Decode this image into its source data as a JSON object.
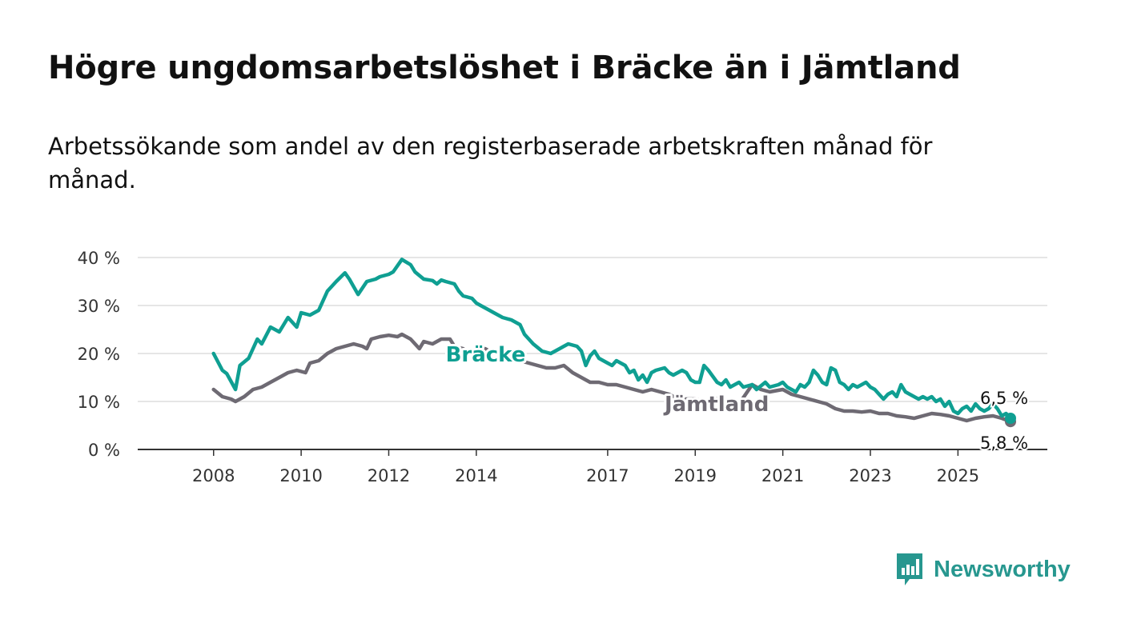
{
  "title": "Högre ungdomsarbetslöshet i Bräcke än i Jämtland",
  "subtitle": "Arbetssökande som andel av den registerbaserade arbetskraften månad för månad.",
  "brand": {
    "name": "Newsworthy",
    "icon": "newsworthy-bar-chart-icon",
    "color": "#27978f"
  },
  "chart_data": {
    "type": "line",
    "title": "",
    "xlabel": "",
    "ylabel": "",
    "ylim": [
      0,
      40
    ],
    "yticks": [
      0,
      10,
      20,
      30,
      40
    ],
    "ytick_labels": [
      "0 %",
      "10 %",
      "20 %",
      "30 %",
      "40 %"
    ],
    "xticks": [
      2008,
      2010,
      2012,
      2014,
      2017,
      2019,
      2021,
      2023,
      2025
    ],
    "xtick_labels": [
      "2008",
      "2010",
      "2012",
      "2014",
      "2017",
      "2019",
      "2021",
      "2023",
      "2025"
    ],
    "xlim": [
      2007.2,
      2026.2
    ],
    "grid": true,
    "legend": "inline labels",
    "series": [
      {
        "name": "Bräcke",
        "color": "#0f9f92",
        "label_at": [
          2013.3,
          19.8
        ],
        "end_label": "6,5 %",
        "points": [
          [
            2008.0,
            20.0
          ],
          [
            2008.2,
            16.5
          ],
          [
            2008.3,
            15.8
          ],
          [
            2008.5,
            12.5
          ],
          [
            2008.6,
            17.5
          ],
          [
            2008.8,
            19.0
          ],
          [
            2009.0,
            23.0
          ],
          [
            2009.1,
            22.0
          ],
          [
            2009.3,
            25.5
          ],
          [
            2009.5,
            24.5
          ],
          [
            2009.7,
            27.5
          ],
          [
            2009.9,
            25.5
          ],
          [
            2010.0,
            28.5
          ],
          [
            2010.2,
            28.0
          ],
          [
            2010.4,
            29.0
          ],
          [
            2010.6,
            33.0
          ],
          [
            2010.8,
            35.0
          ],
          [
            2011.0,
            36.8
          ],
          [
            2011.1,
            35.5
          ],
          [
            2011.3,
            32.3
          ],
          [
            2011.5,
            35.0
          ],
          [
            2011.7,
            35.5
          ],
          [
            2011.8,
            36.0
          ],
          [
            2012.0,
            36.5
          ],
          [
            2012.1,
            37.0
          ],
          [
            2012.3,
            39.6
          ],
          [
            2012.5,
            38.5
          ],
          [
            2012.6,
            37.0
          ],
          [
            2012.8,
            35.5
          ],
          [
            2013.0,
            35.2
          ],
          [
            2013.1,
            34.5
          ],
          [
            2013.2,
            35.3
          ],
          [
            2013.3,
            35.0
          ],
          [
            2013.5,
            34.5
          ],
          [
            2013.6,
            33.0
          ],
          [
            2013.7,
            32.0
          ],
          [
            2013.9,
            31.5
          ],
          [
            2014.0,
            30.5
          ],
          [
            2014.1,
            30.0
          ],
          [
            2014.3,
            29.0
          ],
          [
            2014.4,
            28.5
          ],
          [
            2014.6,
            27.5
          ],
          [
            2014.8,
            27.0
          ],
          [
            2015.0,
            26.0
          ],
          [
            2015.1,
            24.0
          ],
          [
            2015.3,
            22.0
          ],
          [
            2015.5,
            20.5
          ],
          [
            2015.7,
            20.0
          ],
          [
            2015.9,
            21.0
          ],
          [
            2016.0,
            21.5
          ],
          [
            2016.1,
            22.0
          ],
          [
            2016.3,
            21.5
          ],
          [
            2016.4,
            20.5
          ],
          [
            2016.5,
            17.5
          ],
          [
            2016.6,
            19.5
          ],
          [
            2016.7,
            20.5
          ],
          [
            2016.8,
            19.0
          ],
          [
            2017.0,
            18.0
          ],
          [
            2017.1,
            17.5
          ],
          [
            2017.2,
            18.5
          ],
          [
            2017.4,
            17.5
          ],
          [
            2017.5,
            16.0
          ],
          [
            2017.6,
            16.5
          ],
          [
            2017.7,
            14.5
          ],
          [
            2017.8,
            15.5
          ],
          [
            2017.9,
            14.0
          ],
          [
            2018.0,
            16.0
          ],
          [
            2018.1,
            16.5
          ],
          [
            2018.3,
            17.0
          ],
          [
            2018.4,
            16.0
          ],
          [
            2018.5,
            15.5
          ],
          [
            2018.7,
            16.5
          ],
          [
            2018.8,
            16.0
          ],
          [
            2018.9,
            14.5
          ],
          [
            2019.0,
            14.0
          ],
          [
            2019.1,
            14.0
          ],
          [
            2019.2,
            17.5
          ],
          [
            2019.3,
            16.5
          ],
          [
            2019.5,
            14.0
          ],
          [
            2019.6,
            13.5
          ],
          [
            2019.7,
            14.5
          ],
          [
            2019.8,
            13.0
          ],
          [
            2019.9,
            13.5
          ],
          [
            2020.0,
            14.0
          ],
          [
            2020.1,
            13.0
          ],
          [
            2020.3,
            13.5
          ],
          [
            2020.4,
            12.5
          ],
          [
            2020.6,
            14.0
          ],
          [
            2020.7,
            13.0
          ],
          [
            2020.9,
            13.5
          ],
          [
            2021.0,
            14.0
          ],
          [
            2021.1,
            13.0
          ],
          [
            2021.3,
            12.0
          ],
          [
            2021.4,
            13.5
          ],
          [
            2021.5,
            13.0
          ],
          [
            2021.6,
            14.0
          ],
          [
            2021.7,
            16.5
          ],
          [
            2021.8,
            15.5
          ],
          [
            2021.9,
            14.0
          ],
          [
            2022.0,
            13.5
          ],
          [
            2022.1,
            17.0
          ],
          [
            2022.2,
            16.5
          ],
          [
            2022.3,
            14.0
          ],
          [
            2022.4,
            13.5
          ],
          [
            2022.5,
            12.5
          ],
          [
            2022.6,
            13.5
          ],
          [
            2022.7,
            13.0
          ],
          [
            2022.8,
            13.5
          ],
          [
            2022.9,
            14.0
          ],
          [
            2023.0,
            13.0
          ],
          [
            2023.1,
            12.5
          ],
          [
            2023.2,
            11.5
          ],
          [
            2023.3,
            10.5
          ],
          [
            2023.4,
            11.5
          ],
          [
            2023.5,
            12.0
          ],
          [
            2023.6,
            11.0
          ],
          [
            2023.7,
            13.5
          ],
          [
            2023.8,
            12.0
          ],
          [
            2023.9,
            11.5
          ],
          [
            2024.0,
            11.0
          ],
          [
            2024.1,
            10.5
          ],
          [
            2024.2,
            11.0
          ],
          [
            2024.3,
            10.5
          ],
          [
            2024.4,
            11.0
          ],
          [
            2024.5,
            10.0
          ],
          [
            2024.6,
            10.5
          ],
          [
            2024.7,
            9.0
          ],
          [
            2024.8,
            10.0
          ],
          [
            2024.9,
            8.0
          ],
          [
            2025.0,
            7.5
          ],
          [
            2025.1,
            8.5
          ],
          [
            2025.2,
            9.0
          ],
          [
            2025.3,
            8.0
          ],
          [
            2025.4,
            9.5
          ],
          [
            2025.5,
            8.5
          ],
          [
            2025.6,
            8.0
          ],
          [
            2025.7,
            8.5
          ],
          [
            2025.8,
            9.5
          ],
          [
            2025.9,
            8.5
          ],
          [
            2026.0,
            7.0
          ],
          [
            2026.1,
            7.5
          ],
          [
            2026.2,
            6.5
          ]
        ]
      },
      {
        "name": "Jämtland",
        "color": "#6e6a73",
        "label_at": [
          2018.3,
          9.5
        ],
        "end_label": "5,8 %",
        "points": [
          [
            2008.0,
            12.5
          ],
          [
            2008.2,
            11.0
          ],
          [
            2008.4,
            10.5
          ],
          [
            2008.5,
            10.0
          ],
          [
            2008.7,
            11.0
          ],
          [
            2008.9,
            12.5
          ],
          [
            2009.1,
            13.0
          ],
          [
            2009.3,
            14.0
          ],
          [
            2009.5,
            15.0
          ],
          [
            2009.7,
            16.0
          ],
          [
            2009.9,
            16.5
          ],
          [
            2010.1,
            16.0
          ],
          [
            2010.2,
            18.0
          ],
          [
            2010.4,
            18.5
          ],
          [
            2010.6,
            20.0
          ],
          [
            2010.8,
            21.0
          ],
          [
            2011.0,
            21.5
          ],
          [
            2011.2,
            22.0
          ],
          [
            2011.4,
            21.5
          ],
          [
            2011.5,
            21.0
          ],
          [
            2011.6,
            23.0
          ],
          [
            2011.8,
            23.5
          ],
          [
            2012.0,
            23.8
          ],
          [
            2012.2,
            23.5
          ],
          [
            2012.3,
            24.0
          ],
          [
            2012.5,
            23.0
          ],
          [
            2012.7,
            21.0
          ],
          [
            2012.8,
            22.5
          ],
          [
            2013.0,
            22.0
          ],
          [
            2013.2,
            23.0
          ],
          [
            2013.4,
            23.0
          ],
          [
            2013.5,
            21.5
          ],
          [
            2013.7,
            21.0
          ],
          [
            2013.8,
            20.0
          ],
          [
            2014.0,
            21.0
          ],
          [
            2014.2,
            21.0
          ],
          [
            2014.3,
            20.5
          ],
          [
            2014.5,
            20.0
          ],
          [
            2014.7,
            19.5
          ],
          [
            2014.9,
            19.0
          ],
          [
            2015.0,
            18.5
          ],
          [
            2015.2,
            18.0
          ],
          [
            2015.4,
            17.5
          ],
          [
            2015.6,
            17.0
          ],
          [
            2015.8,
            17.0
          ],
          [
            2016.0,
            17.5
          ],
          [
            2016.2,
            16.0
          ],
          [
            2016.4,
            15.0
          ],
          [
            2016.6,
            14.0
          ],
          [
            2016.8,
            14.0
          ],
          [
            2017.0,
            13.5
          ],
          [
            2017.2,
            13.5
          ],
          [
            2017.4,
            13.0
          ],
          [
            2017.6,
            12.5
          ],
          [
            2017.8,
            12.0
          ],
          [
            2018.0,
            12.5
          ],
          [
            2018.2,
            12.0
          ],
          [
            2018.4,
            11.5
          ],
          [
            2018.6,
            10.5
          ],
          [
            2018.8,
            10.5
          ],
          [
            2019.0,
            10.5
          ],
          [
            2019.2,
            10.0
          ],
          [
            2019.4,
            10.5
          ],
          [
            2019.6,
            10.5
          ],
          [
            2019.8,
            10.0
          ],
          [
            2020.0,
            9.5
          ],
          [
            2020.3,
            13.5
          ],
          [
            2020.5,
            12.5
          ],
          [
            2020.7,
            12.0
          ],
          [
            2021.0,
            12.5
          ],
          [
            2021.2,
            11.5
          ],
          [
            2021.4,
            11.0
          ],
          [
            2021.6,
            10.5
          ],
          [
            2021.8,
            10.0
          ],
          [
            2022.0,
            9.5
          ],
          [
            2022.2,
            8.5
          ],
          [
            2022.4,
            8.0
          ],
          [
            2022.6,
            8.0
          ],
          [
            2022.8,
            7.8
          ],
          [
            2023.0,
            8.0
          ],
          [
            2023.2,
            7.5
          ],
          [
            2023.4,
            7.5
          ],
          [
            2023.6,
            7.0
          ],
          [
            2023.8,
            6.8
          ],
          [
            2024.0,
            6.5
          ],
          [
            2024.2,
            7.0
          ],
          [
            2024.4,
            7.5
          ],
          [
            2024.6,
            7.3
          ],
          [
            2024.8,
            7.0
          ],
          [
            2025.0,
            6.5
          ],
          [
            2025.2,
            6.0
          ],
          [
            2025.4,
            6.5
          ],
          [
            2025.6,
            6.8
          ],
          [
            2025.8,
            7.0
          ],
          [
            2026.0,
            6.5
          ],
          [
            2026.2,
            5.8
          ]
        ]
      }
    ]
  }
}
